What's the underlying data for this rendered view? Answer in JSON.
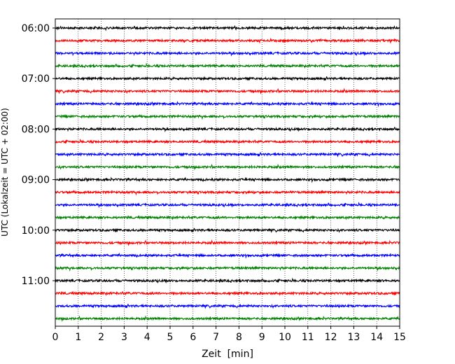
{
  "chart_data": {
    "type": "line",
    "title": "",
    "xlabel": "Zeit  [min]",
    "ylabel": "UTC (Lokalzeit = UTC + 02:00)",
    "xlim": [
      0,
      15
    ],
    "x_ticks": [
      0,
      1,
      2,
      3,
      4,
      5,
      6,
      7,
      8,
      9,
      10,
      11,
      12,
      13,
      14,
      15
    ],
    "x_tick_labels": [
      "0",
      "1",
      "2",
      "3",
      "4",
      "5",
      "6",
      "7",
      "8",
      "9",
      "10",
      "11",
      "12",
      "13",
      "14",
      "15"
    ],
    "y_tick_labels": [
      "06:00",
      "07:00",
      "08:00",
      "09:00",
      "10:00",
      "11:00"
    ],
    "grid": "vertical dotted at each minute",
    "trace_interval_min": 15,
    "trace_colors": [
      "#000000",
      "#ff0000",
      "#0000ff",
      "#008000"
    ],
    "traces": [
      {
        "start": "06:00",
        "color": "#000000"
      },
      {
        "start": "06:15",
        "color": "#ff0000"
      },
      {
        "start": "06:30",
        "color": "#0000ff"
      },
      {
        "start": "06:45",
        "color": "#008000"
      },
      {
        "start": "07:00",
        "color": "#000000"
      },
      {
        "start": "07:15",
        "color": "#ff0000"
      },
      {
        "start": "07:30",
        "color": "#0000ff"
      },
      {
        "start": "07:45",
        "color": "#008000"
      },
      {
        "start": "08:00",
        "color": "#000000"
      },
      {
        "start": "08:15",
        "color": "#ff0000"
      },
      {
        "start": "08:30",
        "color": "#0000ff"
      },
      {
        "start": "08:45",
        "color": "#008000"
      },
      {
        "start": "09:00",
        "color": "#000000"
      },
      {
        "start": "09:15",
        "color": "#ff0000"
      },
      {
        "start": "09:30",
        "color": "#0000ff"
      },
      {
        "start": "09:45",
        "color": "#008000"
      },
      {
        "start": "10:00",
        "color": "#000000"
      },
      {
        "start": "10:15",
        "color": "#ff0000"
      },
      {
        "start": "10:30",
        "color": "#0000ff"
      },
      {
        "start": "10:45",
        "color": "#008000"
      },
      {
        "start": "11:00",
        "color": "#000000"
      },
      {
        "start": "11:15",
        "color": "#ff0000"
      },
      {
        "start": "11:30",
        "color": "#0000ff"
      },
      {
        "start": "11:45",
        "color": "#008000"
      }
    ]
  }
}
